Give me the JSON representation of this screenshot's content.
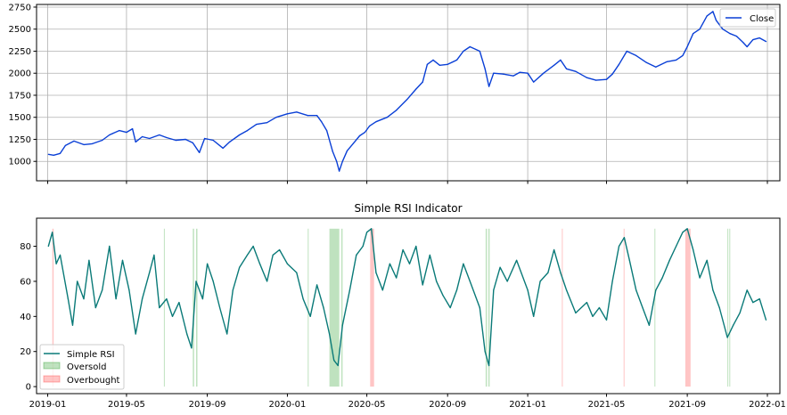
{
  "chart_data": [
    {
      "type": "line",
      "title": "",
      "xlabel": "",
      "ylabel": "",
      "x_range": [
        "2018-12-15",
        "2022-01-20"
      ],
      "ylim": [
        780,
        2780
      ],
      "grid": true,
      "legend_position": "top-right",
      "x_ticks": [],
      "y_ticks": [
        1000,
        1250,
        1500,
        1750,
        2000,
        2250,
        2500,
        2750
      ],
      "colors": {
        "close": "#0a3fd6"
      },
      "series": [
        {
          "name": "Close",
          "points": [
            [
              "2019-01-02",
              1080
            ],
            [
              "2019-01-10",
              1070
            ],
            [
              "2019-01-20",
              1090
            ],
            [
              "2019-01-28",
              1180
            ],
            [
              "2019-02-10",
              1230
            ],
            [
              "2019-02-25",
              1190
            ],
            [
              "2019-03-10",
              1200
            ],
            [
              "2019-03-25",
              1240
            ],
            [
              "2019-04-05",
              1300
            ],
            [
              "2019-04-20",
              1350
            ],
            [
              "2019-05-01",
              1330
            ],
            [
              "2019-05-10",
              1370
            ],
            [
              "2019-05-15",
              1220
            ],
            [
              "2019-05-25",
              1280
            ],
            [
              "2019-06-05",
              1260
            ],
            [
              "2019-06-20",
              1300
            ],
            [
              "2019-07-01",
              1270
            ],
            [
              "2019-07-15",
              1240
            ],
            [
              "2019-07-30",
              1250
            ],
            [
              "2019-08-10",
              1210
            ],
            [
              "2019-08-20",
              1100
            ],
            [
              "2019-08-28",
              1260
            ],
            [
              "2019-09-10",
              1240
            ],
            [
              "2019-09-25",
              1150
            ],
            [
              "2019-10-05",
              1220
            ],
            [
              "2019-10-20",
              1300
            ],
            [
              "2019-11-01",
              1350
            ],
            [
              "2019-11-15",
              1420
            ],
            [
              "2019-12-01",
              1440
            ],
            [
              "2019-12-15",
              1500
            ],
            [
              "2020-01-01",
              1540
            ],
            [
              "2020-01-15",
              1560
            ],
            [
              "2020-02-01",
              1520
            ],
            [
              "2020-02-15",
              1520
            ],
            [
              "2020-02-22",
              1450
            ],
            [
              "2020-03-01",
              1350
            ],
            [
              "2020-03-10",
              1110
            ],
            [
              "2020-03-16",
              1000
            ],
            [
              "2020-03-20",
              890
            ],
            [
              "2020-03-25",
              1000
            ],
            [
              "2020-04-01",
              1120
            ],
            [
              "2020-04-10",
              1200
            ],
            [
              "2020-04-20",
              1290
            ],
            [
              "2020-04-28",
              1330
            ],
            [
              "2020-05-05",
              1400
            ],
            [
              "2020-05-15",
              1450
            ],
            [
              "2020-06-01",
              1500
            ],
            [
              "2020-06-15",
              1580
            ],
            [
              "2020-07-01",
              1700
            ],
            [
              "2020-07-15",
              1820
            ],
            [
              "2020-07-25",
              1900
            ],
            [
              "2020-08-01",
              2100
            ],
            [
              "2020-08-10",
              2150
            ],
            [
              "2020-08-20",
              2090
            ],
            [
              "2020-09-01",
              2100
            ],
            [
              "2020-09-15",
              2150
            ],
            [
              "2020-09-25",
              2250
            ],
            [
              "2020-10-05",
              2300
            ],
            [
              "2020-10-20",
              2250
            ],
            [
              "2020-10-28",
              2050
            ],
            [
              "2020-11-03",
              1850
            ],
            [
              "2020-11-10",
              2000
            ],
            [
              "2020-11-25",
              1990
            ],
            [
              "2020-12-10",
              1970
            ],
            [
              "2020-12-20",
              2010
            ],
            [
              "2021-01-01",
              2000
            ],
            [
              "2021-01-10",
              1900
            ],
            [
              "2021-01-25",
              2000
            ],
            [
              "2021-02-10",
              2090
            ],
            [
              "2021-02-20",
              2150
            ],
            [
              "2021-03-01",
              2050
            ],
            [
              "2021-03-15",
              2020
            ],
            [
              "2021-04-01",
              1950
            ],
            [
              "2021-04-15",
              1920
            ],
            [
              "2021-05-01",
              1930
            ],
            [
              "2021-05-10",
              1990
            ],
            [
              "2021-05-20",
              2100
            ],
            [
              "2021-06-01",
              2250
            ],
            [
              "2021-06-15",
              2200
            ],
            [
              "2021-07-01",
              2120
            ],
            [
              "2021-07-15",
              2070
            ],
            [
              "2021-08-01",
              2130
            ],
            [
              "2021-08-15",
              2150
            ],
            [
              "2021-08-25",
              2200
            ],
            [
              "2021-09-01",
              2300
            ],
            [
              "2021-09-10",
              2450
            ],
            [
              "2021-09-20",
              2500
            ],
            [
              "2021-10-01",
              2650
            ],
            [
              "2021-10-10",
              2700
            ],
            [
              "2021-10-15",
              2600
            ],
            [
              "2021-10-25",
              2500
            ],
            [
              "2021-11-05",
              2450
            ],
            [
              "2021-11-15",
              2420
            ],
            [
              "2021-11-25",
              2350
            ],
            [
              "2021-12-01",
              2300
            ],
            [
              "2021-12-10",
              2380
            ],
            [
              "2021-12-20",
              2400
            ],
            [
              "2021-12-30",
              2360
            ]
          ]
        }
      ]
    },
    {
      "type": "line",
      "title": "Simple RSI Indicator",
      "xlabel": "",
      "ylabel": "",
      "x_range": [
        "2018-12-15",
        "2022-01-20"
      ],
      "ylim": [
        -4,
        96
      ],
      "grid": false,
      "legend_position": "bottom-left",
      "x_ticks": [
        "2019-01",
        "2019-05",
        "2019-09",
        "2020-01",
        "2020-05",
        "2020-09",
        "2021-01",
        "2021-05",
        "2021-09",
        "2022-01"
      ],
      "y_ticks": [
        0,
        20,
        40,
        60,
        80
      ],
      "colors": {
        "rsi": "#0a7a78",
        "oversold": "#2ca02c",
        "overbought": "#ff4040"
      },
      "series": [
        {
          "name": "Simple RSI",
          "points": [
            [
              "2019-01-02",
              80
            ],
            [
              "2019-01-08",
              88
            ],
            [
              "2019-01-14",
              70
            ],
            [
              "2019-01-20",
              75
            ],
            [
              "2019-02-01",
              50
            ],
            [
              "2019-02-08",
              35
            ],
            [
              "2019-02-15",
              60
            ],
            [
              "2019-02-25",
              50
            ],
            [
              "2019-03-05",
              72
            ],
            [
              "2019-03-15",
              45
            ],
            [
              "2019-03-25",
              55
            ],
            [
              "2019-04-05",
              80
            ],
            [
              "2019-04-15",
              50
            ],
            [
              "2019-04-25",
              72
            ],
            [
              "2019-05-05",
              55
            ],
            [
              "2019-05-15",
              30
            ],
            [
              "2019-05-25",
              50
            ],
            [
              "2019-06-05",
              65
            ],
            [
              "2019-06-12",
              75
            ],
            [
              "2019-06-20",
              45
            ],
            [
              "2019-07-01",
              50
            ],
            [
              "2019-07-10",
              40
            ],
            [
              "2019-07-20",
              48
            ],
            [
              "2019-08-01",
              30
            ],
            [
              "2019-08-08",
              22
            ],
            [
              "2019-08-15",
              60
            ],
            [
              "2019-08-25",
              50
            ],
            [
              "2019-09-01",
              70
            ],
            [
              "2019-09-10",
              60
            ],
            [
              "2019-09-20",
              45
            ],
            [
              "2019-10-01",
              30
            ],
            [
              "2019-10-10",
              55
            ],
            [
              "2019-10-20",
              68
            ],
            [
              "2019-11-01",
              75
            ],
            [
              "2019-11-10",
              80
            ],
            [
              "2019-11-20",
              70
            ],
            [
              "2019-12-01",
              60
            ],
            [
              "2019-12-10",
              75
            ],
            [
              "2019-12-20",
              78
            ],
            [
              "2020-01-01",
              70
            ],
            [
              "2020-01-15",
              65
            ],
            [
              "2020-01-25",
              50
            ],
            [
              "2020-02-05",
              40
            ],
            [
              "2020-02-15",
              58
            ],
            [
              "2020-02-25",
              45
            ],
            [
              "2020-03-05",
              30
            ],
            [
              "2020-03-12",
              15
            ],
            [
              "2020-03-18",
              12
            ],
            [
              "2020-03-25",
              35
            ],
            [
              "2020-04-05",
              55
            ],
            [
              "2020-04-15",
              75
            ],
            [
              "2020-04-25",
              80
            ],
            [
              "2020-05-01",
              88
            ],
            [
              "2020-05-08",
              90
            ],
            [
              "2020-05-15",
              65
            ],
            [
              "2020-05-25",
              55
            ],
            [
              "2020-06-05",
              70
            ],
            [
              "2020-06-15",
              62
            ],
            [
              "2020-06-25",
              78
            ],
            [
              "2020-07-05",
              70
            ],
            [
              "2020-07-15",
              80
            ],
            [
              "2020-07-25",
              58
            ],
            [
              "2020-08-05",
              75
            ],
            [
              "2020-08-15",
              60
            ],
            [
              "2020-08-25",
              52
            ],
            [
              "2020-09-05",
              45
            ],
            [
              "2020-09-15",
              55
            ],
            [
              "2020-09-25",
              70
            ],
            [
              "2020-10-05",
              60
            ],
            [
              "2020-10-20",
              45
            ],
            [
              "2020-10-28",
              20
            ],
            [
              "2020-11-03",
              12
            ],
            [
              "2020-11-10",
              55
            ],
            [
              "2020-11-20",
              68
            ],
            [
              "2020-12-01",
              60
            ],
            [
              "2020-12-15",
              72
            ],
            [
              "2021-01-01",
              55
            ],
            [
              "2021-01-10",
              40
            ],
            [
              "2021-01-20",
              60
            ],
            [
              "2021-02-01",
              65
            ],
            [
              "2021-02-10",
              78
            ],
            [
              "2021-02-20",
              65
            ],
            [
              "2021-03-01",
              55
            ],
            [
              "2021-03-15",
              42
            ],
            [
              "2021-04-01",
              48
            ],
            [
              "2021-04-10",
              40
            ],
            [
              "2021-04-20",
              45
            ],
            [
              "2021-05-01",
              38
            ],
            [
              "2021-05-10",
              60
            ],
            [
              "2021-05-20",
              80
            ],
            [
              "2021-05-28",
              85
            ],
            [
              "2021-06-05",
              72
            ],
            [
              "2021-06-15",
              55
            ],
            [
              "2021-06-25",
              45
            ],
            [
              "2021-07-05",
              35
            ],
            [
              "2021-07-15",
              55
            ],
            [
              "2021-07-25",
              62
            ],
            [
              "2021-08-05",
              72
            ],
            [
              "2021-08-15",
              80
            ],
            [
              "2021-08-25",
              88
            ],
            [
              "2021-09-01",
              90
            ],
            [
              "2021-09-10",
              78
            ],
            [
              "2021-09-20",
              62
            ],
            [
              "2021-10-01",
              72
            ],
            [
              "2021-10-10",
              55
            ],
            [
              "2021-10-20",
              45
            ],
            [
              "2021-11-01",
              28
            ],
            [
              "2021-11-10",
              35
            ],
            [
              "2021-11-20",
              42
            ],
            [
              "2021-12-01",
              55
            ],
            [
              "2021-12-10",
              48
            ],
            [
              "2021-12-20",
              50
            ],
            [
              "2021-12-30",
              38
            ]
          ]
        }
      ],
      "bands": [
        {
          "name": "Oversold",
          "spans": [
            [
              "2019-06-27",
              "2019-06-28"
            ],
            [
              "2019-08-10",
              "2019-08-12"
            ],
            [
              "2019-08-15",
              "2019-08-17"
            ],
            [
              "2020-02-01",
              "2020-02-02"
            ],
            [
              "2020-03-05",
              "2020-03-20"
            ],
            [
              "2020-03-23",
              "2020-03-25"
            ],
            [
              "2020-10-29",
              "2020-10-31"
            ],
            [
              "2020-11-02",
              "2020-11-04"
            ],
            [
              "2021-07-13",
              "2021-07-14"
            ],
            [
              "2021-11-01",
              "2021-11-02"
            ],
            [
              "2021-11-04",
              "2021-11-05"
            ]
          ]
        },
        {
          "name": "Overbought",
          "spans": [
            [
              "2019-01-08",
              "2019-01-10"
            ],
            [
              "2020-05-06",
              "2020-05-12"
            ],
            [
              "2021-02-22",
              "2021-02-23"
            ],
            [
              "2021-05-27",
              "2021-05-28"
            ],
            [
              "2021-08-29",
              "2021-09-06"
            ]
          ]
        }
      ]
    }
  ]
}
